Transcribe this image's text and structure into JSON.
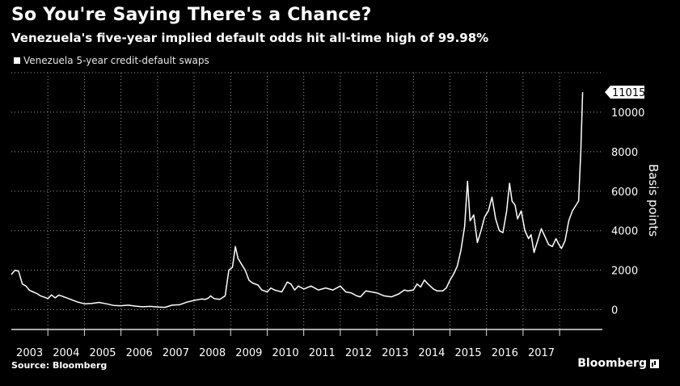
{
  "header": {
    "title": "So You're Saying There's a Chance?",
    "subtitle": "Venezuela's five-year implied default odds hit all-time high of 99.98%"
  },
  "footer": {
    "source": "Source: Bloomberg",
    "brand": "Bloomberg"
  },
  "chart_data": {
    "type": "line",
    "series": [
      {
        "name": "Venezuela 5-year credit-default swaps",
        "color": "#ffffff",
        "points": [
          [
            2003.0,
            1780
          ],
          [
            2003.1,
            2000
          ],
          [
            2003.2,
            1950
          ],
          [
            2003.3,
            1300
          ],
          [
            2003.4,
            1200
          ],
          [
            2003.5,
            980
          ],
          [
            2003.6,
            900
          ],
          [
            2003.7,
            820
          ],
          [
            2003.8,
            700
          ],
          [
            2003.9,
            640
          ],
          [
            2004.0,
            560
          ],
          [
            2004.1,
            750
          ],
          [
            2004.2,
            600
          ],
          [
            2004.3,
            740
          ],
          [
            2004.4,
            680
          ],
          [
            2004.6,
            540
          ],
          [
            2004.8,
            400
          ],
          [
            2005.0,
            300
          ],
          [
            2005.2,
            320
          ],
          [
            2005.4,
            370
          ],
          [
            2005.6,
            300
          ],
          [
            2005.8,
            220
          ],
          [
            2006.0,
            200
          ],
          [
            2006.2,
            230
          ],
          [
            2006.4,
            180
          ],
          [
            2006.6,
            150
          ],
          [
            2006.8,
            170
          ],
          [
            2007.0,
            140
          ],
          [
            2007.2,
            120
          ],
          [
            2007.4,
            230
          ],
          [
            2007.6,
            250
          ],
          [
            2007.8,
            380
          ],
          [
            2008.0,
            470
          ],
          [
            2008.2,
            540
          ],
          [
            2008.3,
            520
          ],
          [
            2008.4,
            600
          ],
          [
            2008.45,
            700
          ],
          [
            2008.55,
            560
          ],
          [
            2008.7,
            520
          ],
          [
            2008.85,
            700
          ],
          [
            2008.95,
            2000
          ],
          [
            2009.05,
            2150
          ],
          [
            2009.13,
            3200
          ],
          [
            2009.2,
            2600
          ],
          [
            2009.3,
            2300
          ],
          [
            2009.4,
            2000
          ],
          [
            2009.5,
            1500
          ],
          [
            2009.6,
            1350
          ],
          [
            2009.75,
            1250
          ],
          [
            2009.85,
            1000
          ],
          [
            2010.0,
            900
          ],
          [
            2010.1,
            1100
          ],
          [
            2010.2,
            1000
          ],
          [
            2010.3,
            950
          ],
          [
            2010.4,
            900
          ],
          [
            2010.55,
            1400
          ],
          [
            2010.65,
            1300
          ],
          [
            2010.75,
            1000
          ],
          [
            2010.85,
            1200
          ],
          [
            2011.0,
            1050
          ],
          [
            2011.2,
            1200
          ],
          [
            2011.4,
            1000
          ],
          [
            2011.6,
            1100
          ],
          [
            2011.8,
            1000
          ],
          [
            2012.0,
            1200
          ],
          [
            2012.15,
            900
          ],
          [
            2012.3,
            850
          ],
          [
            2012.45,
            700
          ],
          [
            2012.55,
            650
          ],
          [
            2012.7,
            950
          ],
          [
            2012.85,
            900
          ],
          [
            2013.0,
            850
          ],
          [
            2013.2,
            700
          ],
          [
            2013.4,
            650
          ],
          [
            2013.6,
            800
          ],
          [
            2013.75,
            1000
          ],
          [
            2013.85,
            950
          ],
          [
            2014.0,
            1000
          ],
          [
            2014.1,
            1300
          ],
          [
            2014.2,
            1150
          ],
          [
            2014.3,
            1500
          ],
          [
            2014.4,
            1300
          ],
          [
            2014.55,
            1050
          ],
          [
            2014.65,
            950
          ],
          [
            2014.8,
            950
          ],
          [
            2014.9,
            1100
          ],
          [
            2015.0,
            1500
          ],
          [
            2015.1,
            1800
          ],
          [
            2015.2,
            2200
          ],
          [
            2015.3,
            3000
          ],
          [
            2015.4,
            4200
          ],
          [
            2015.48,
            6500
          ],
          [
            2015.55,
            4500
          ],
          [
            2015.65,
            4800
          ],
          [
            2015.75,
            3400
          ],
          [
            2015.85,
            4000
          ],
          [
            2015.95,
            4700
          ],
          [
            2016.05,
            5000
          ],
          [
            2016.15,
            5700
          ],
          [
            2016.25,
            4600
          ],
          [
            2016.35,
            4000
          ],
          [
            2016.45,
            3900
          ],
          [
            2016.55,
            5000
          ],
          [
            2016.63,
            6400
          ],
          [
            2016.7,
            5500
          ],
          [
            2016.78,
            5300
          ],
          [
            2016.85,
            4600
          ],
          [
            2016.95,
            5000
          ],
          [
            2017.05,
            4000
          ],
          [
            2017.15,
            3600
          ],
          [
            2017.22,
            3800
          ],
          [
            2017.3,
            2900
          ],
          [
            2017.4,
            3500
          ],
          [
            2017.5,
            4100
          ],
          [
            2017.6,
            3700
          ],
          [
            2017.7,
            3300
          ],
          [
            2017.8,
            3200
          ],
          [
            2017.9,
            3600
          ],
          [
            2017.98,
            3300
          ],
          [
            2018.05,
            3100
          ],
          [
            2018.15,
            3500
          ],
          [
            2018.25,
            4500
          ],
          [
            2018.35,
            5000
          ],
          [
            2018.45,
            5300
          ],
          [
            2018.52,
            5500
          ],
          [
            2018.58,
            8000
          ],
          [
            2018.63,
            11015
          ]
        ]
      }
    ],
    "x_ticks": [
      "2003",
      "2004",
      "2005",
      "2006",
      "2007",
      "2008",
      "2009",
      "2010",
      "2011",
      "2012",
      "2013",
      "2014",
      "2015",
      "2016",
      "2017"
    ],
    "y_ticks": [
      0,
      2000,
      4000,
      6000,
      8000,
      10000
    ],
    "ylim": [
      -1000,
      12000
    ],
    "xlim": [
      2003,
      2019.17
    ],
    "ylabel": "Basis points",
    "last_value_label": "11015",
    "grid": true
  }
}
